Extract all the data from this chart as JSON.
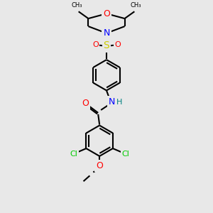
{
  "bg_color": "#e8e8e8",
  "bond_color": "#000000",
  "atom_colors": {
    "O": "#ff0000",
    "N": "#0000ff",
    "S": "#cccc00",
    "Cl": "#00cc00",
    "C": "#000000",
    "H": "#008080"
  },
  "font_size": 8,
  "line_width": 1.5,
  "figsize": [
    3.0,
    3.0
  ],
  "dpi": 100
}
